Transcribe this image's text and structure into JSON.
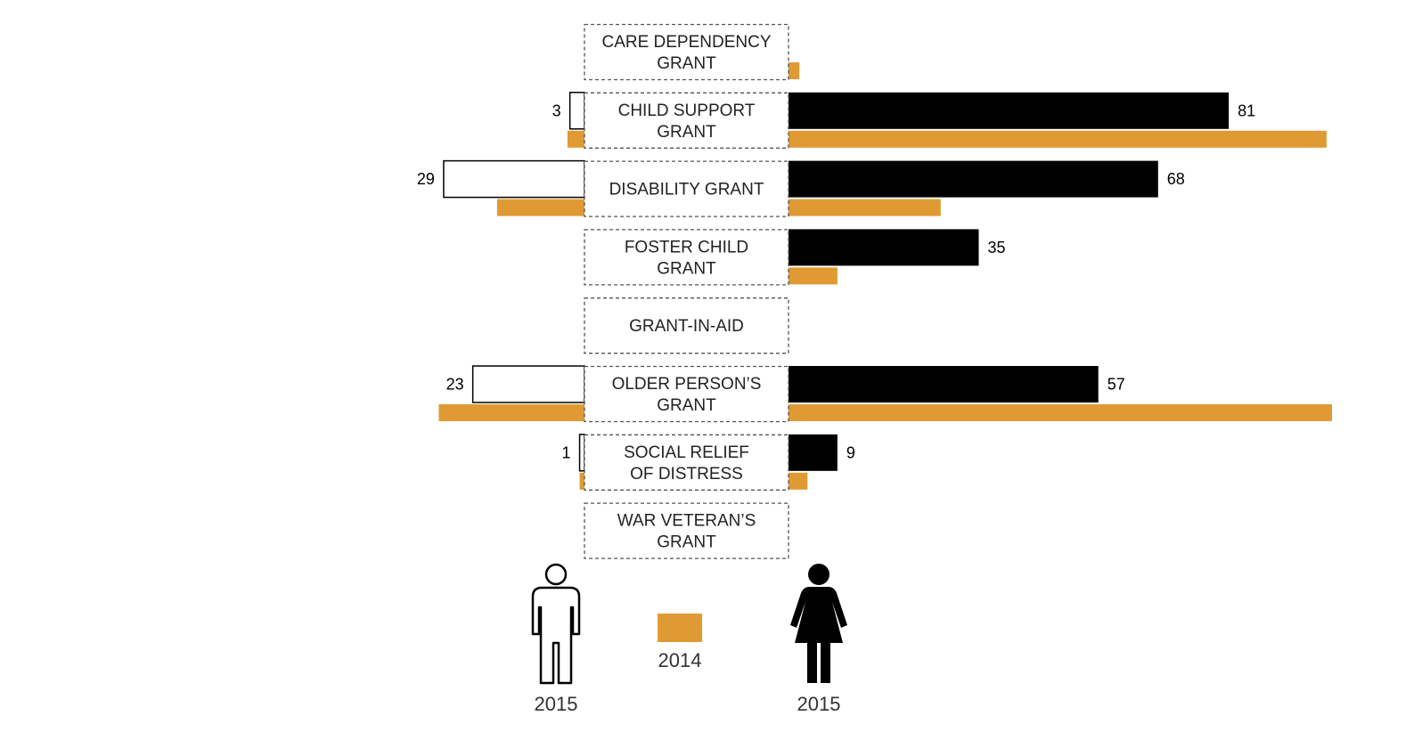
{
  "chart_data": {
    "type": "bar",
    "layout": "butterfly",
    "categories": [
      [
        "CARE DEPENDENCY",
        "GRANT"
      ],
      [
        "CHILD SUPPORT",
        "GRANT"
      ],
      [
        "DISABILITY GRANT"
      ],
      [
        "FOSTER CHILD",
        "GRANT"
      ],
      [
        "GRANT-IN-AID"
      ],
      [
        "OLDER PERSON’S",
        "GRANT"
      ],
      [
        "SOCIAL RELIEF",
        "OF DISTRESS"
      ],
      [
        "WAR VETERAN’S",
        "GRANT"
      ]
    ],
    "series": [
      {
        "side": "left",
        "year": "2015",
        "values": [
          0,
          3,
          29,
          0,
          0,
          23,
          1,
          0
        ],
        "labeled": true
      },
      {
        "side": "left",
        "year": "2014",
        "values": [
          0,
          3.5,
          18,
          0,
          0,
          30,
          1,
          0
        ],
        "labeled": false
      },
      {
        "side": "right",
        "year": "2015",
        "values": [
          0,
          81,
          68,
          35,
          0,
          57,
          9,
          0
        ],
        "labeled": true
      },
      {
        "side": "right",
        "year": "2014",
        "values": [
          2,
          99,
          28,
          9,
          0,
          100,
          3.5,
          0
        ],
        "labeled": false
      }
    ],
    "legend": {
      "male_label": "2015",
      "female_label": "2015",
      "prior_label": "2014"
    },
    "colors": {
      "male_2015_fill": "#ffffff",
      "male_2015_stroke": "#000000",
      "female_2015": "#000000",
      "prior_2014": "#e09a33",
      "box_border": "#555555"
    },
    "icons": {
      "male": "male-figure-icon",
      "female": "female-figure-icon"
    }
  }
}
